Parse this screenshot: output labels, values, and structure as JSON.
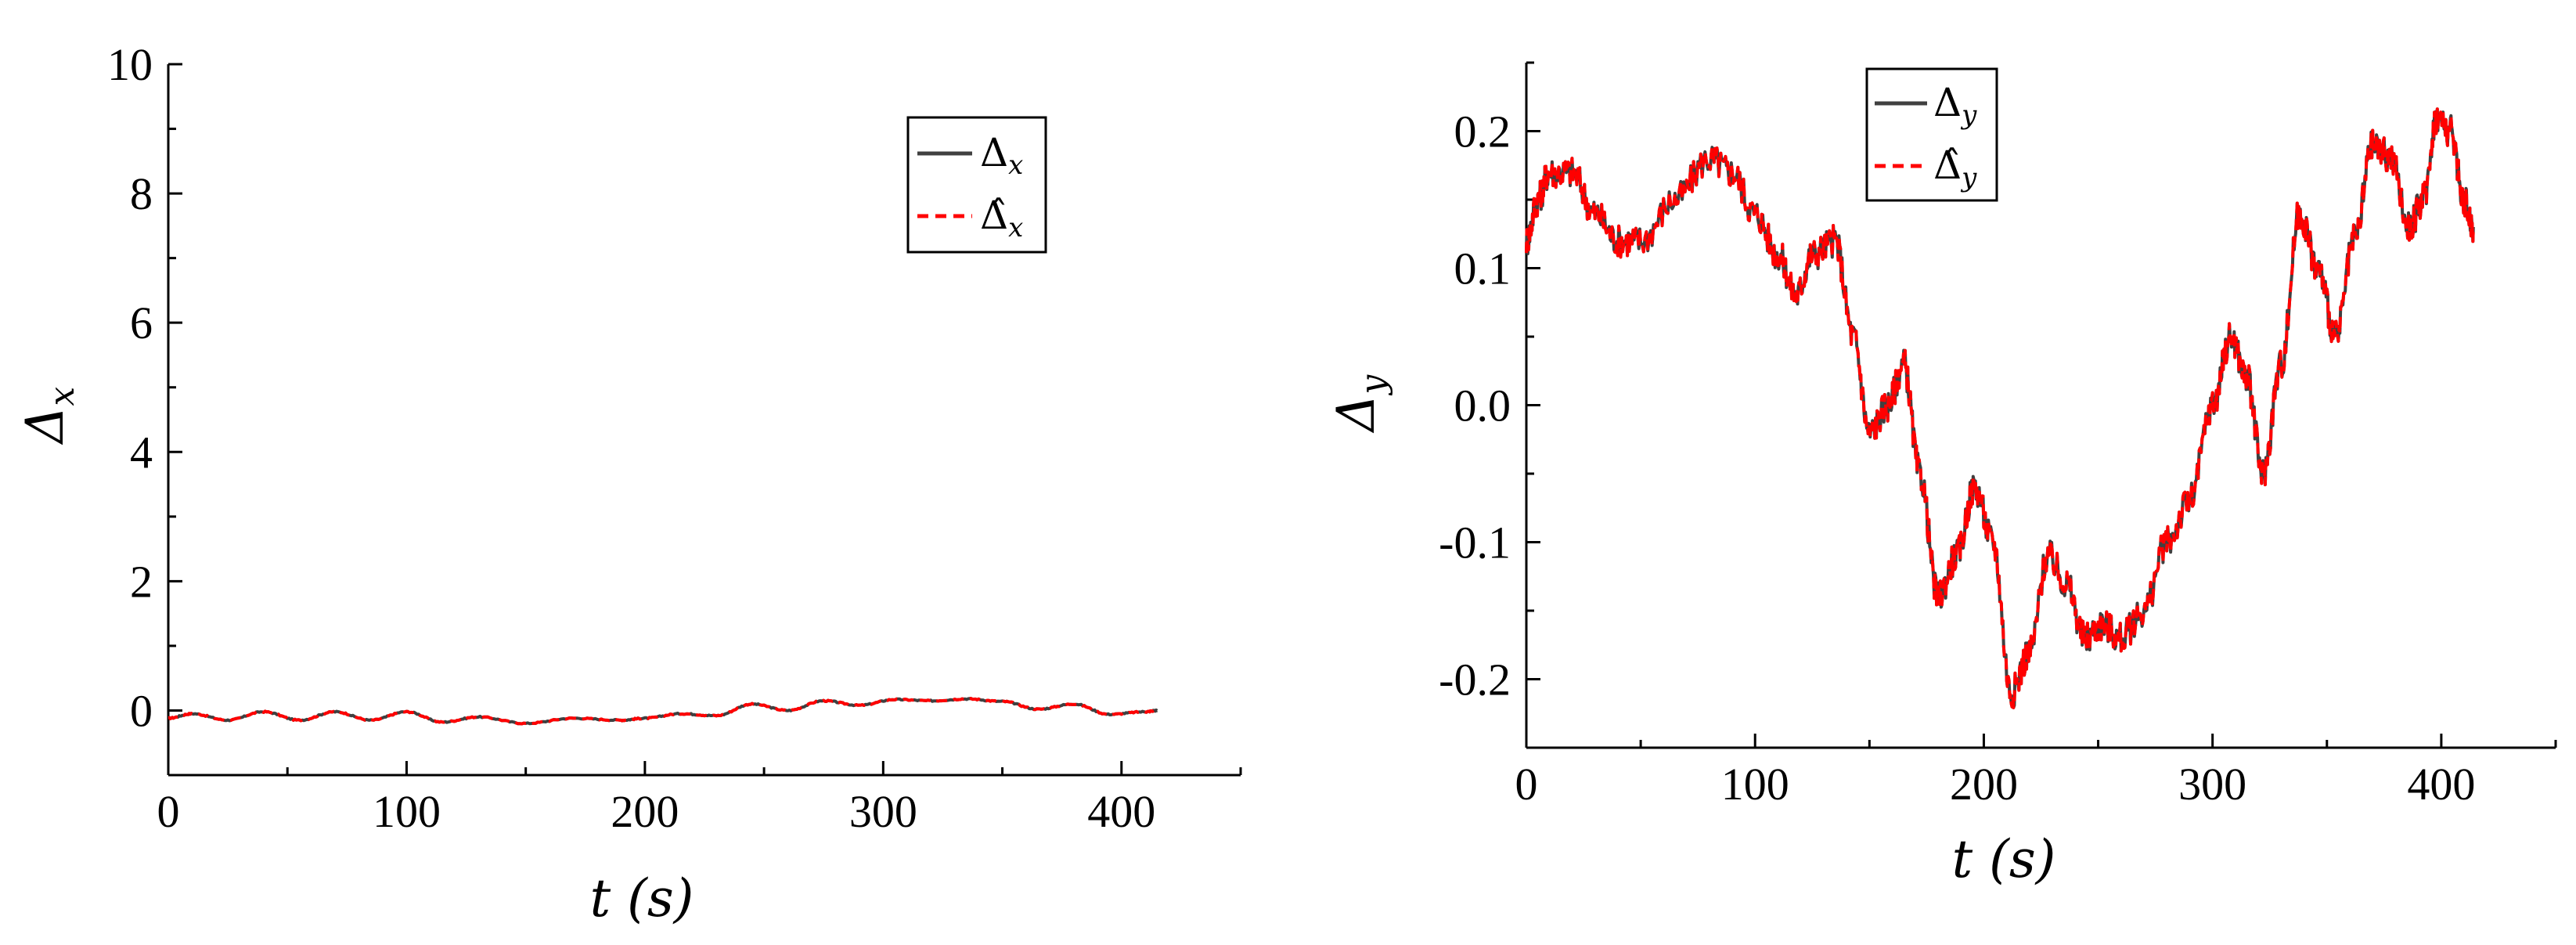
{
  "chart_data": [
    {
      "type": "line",
      "xlabel": "t (s)",
      "ylabel": "Δx",
      "xlim": [
        0,
        450
      ],
      "ylim": [
        -1,
        10
      ],
      "xticks": [
        0,
        100,
        200,
        300,
        400
      ],
      "yticks": [
        0,
        2,
        4,
        6,
        8,
        10
      ],
      "legend_position": "top-right",
      "series": [
        {
          "name": "Δx",
          "color": "#404040",
          "style": "solid",
          "x": [
            0,
            10,
            25,
            40,
            55,
            70,
            85,
            100,
            115,
            130,
            150,
            170,
            190,
            200,
            215,
            230,
            245,
            260,
            275,
            290,
            305,
            320,
            335,
            350,
            365,
            380,
            395,
            410,
            415
          ],
          "y": [
            -0.12,
            -0.05,
            -0.15,
            -0.02,
            -0.15,
            -0.02,
            -0.15,
            -0.02,
            -0.18,
            -0.1,
            -0.2,
            -0.12,
            -0.15,
            -0.12,
            -0.05,
            -0.08,
            0.1,
            0.0,
            0.15,
            0.08,
            0.17,
            0.15,
            0.18,
            0.14,
            0.02,
            0.1,
            -0.06,
            -0.02,
            0.0
          ]
        },
        {
          "name": "Δ̂x",
          "color": "#ff0000",
          "style": "dashed",
          "x": [
            0,
            10,
            25,
            40,
            55,
            70,
            85,
            100,
            115,
            130,
            150,
            170,
            190,
            200,
            215,
            230,
            245,
            260,
            275,
            290,
            305,
            320,
            335,
            350,
            365,
            380,
            395,
            410,
            415
          ],
          "y": [
            -0.12,
            -0.05,
            -0.15,
            -0.02,
            -0.15,
            -0.02,
            -0.15,
            -0.02,
            -0.18,
            -0.1,
            -0.2,
            -0.12,
            -0.15,
            -0.12,
            -0.05,
            -0.08,
            0.1,
            0.0,
            0.15,
            0.08,
            0.17,
            0.15,
            0.18,
            0.14,
            0.02,
            0.1,
            -0.06,
            -0.02,
            0.0
          ]
        }
      ]
    },
    {
      "type": "line",
      "xlabel": "t (s)",
      "ylabel": "Δy",
      "xlim": [
        0,
        450
      ],
      "ylim": [
        -0.25,
        0.25
      ],
      "xticks": [
        0,
        100,
        200,
        300,
        400
      ],
      "yticks": [
        -0.2,
        -0.1,
        0.0,
        0.1,
        0.2
      ],
      "ytick_labels": [
        "-0.2",
        "-0.1",
        "0.0",
        "0.1",
        "0.2"
      ],
      "legend_position": "top-center",
      "series": [
        {
          "name": "Δy",
          "color": "#404040",
          "style": "solid",
          "x": [
            0,
            5,
            10,
            20,
            30,
            40,
            50,
            65,
            80,
            90,
            100,
            110,
            118,
            125,
            135,
            143,
            150,
            158,
            165,
            172,
            180,
            188,
            196,
            204,
            212,
            220,
            228,
            236,
            244,
            252,
            260,
            270,
            280,
            290,
            300,
            308,
            315,
            322,
            330,
            338,
            346,
            354,
            362,
            370,
            378,
            386,
            392,
            398,
            404,
            410,
            414
          ],
          "y": [
            0.12,
            0.15,
            0.17,
            0.17,
            0.14,
            0.12,
            0.12,
            0.15,
            0.18,
            0.17,
            0.14,
            0.11,
            0.08,
            0.11,
            0.12,
            0.05,
            -0.02,
            0.0,
            0.03,
            -0.05,
            -0.14,
            -0.11,
            -0.06,
            -0.1,
            -0.21,
            -0.18,
            -0.11,
            -0.13,
            -0.17,
            -0.16,
            -0.17,
            -0.15,
            -0.1,
            -0.07,
            0.0,
            0.05,
            0.02,
            -0.05,
            0.03,
            0.14,
            0.1,
            0.05,
            0.12,
            0.19,
            0.18,
            0.13,
            0.15,
            0.21,
            0.2,
            0.15,
            0.13
          ]
        },
        {
          "name": "Δ̂y",
          "color": "#ff0000",
          "style": "dashed",
          "x": [
            0,
            5,
            10,
            20,
            30,
            40,
            50,
            65,
            80,
            90,
            100,
            110,
            118,
            125,
            135,
            143,
            150,
            158,
            165,
            172,
            180,
            188,
            196,
            204,
            212,
            220,
            228,
            236,
            244,
            252,
            260,
            270,
            280,
            290,
            300,
            308,
            315,
            322,
            330,
            338,
            346,
            354,
            362,
            370,
            378,
            386,
            392,
            398,
            404,
            410,
            414
          ],
          "y": [
            0.12,
            0.15,
            0.17,
            0.17,
            0.14,
            0.12,
            0.12,
            0.15,
            0.18,
            0.17,
            0.14,
            0.11,
            0.08,
            0.11,
            0.12,
            0.05,
            -0.02,
            0.0,
            0.03,
            -0.05,
            -0.14,
            -0.11,
            -0.06,
            -0.1,
            -0.21,
            -0.18,
            -0.11,
            -0.13,
            -0.17,
            -0.16,
            -0.17,
            -0.15,
            -0.1,
            -0.07,
            0.0,
            0.05,
            0.02,
            -0.05,
            0.03,
            0.14,
            0.1,
            0.05,
            0.12,
            0.19,
            0.18,
            0.13,
            0.15,
            0.21,
            0.2,
            0.15,
            0.13
          ]
        }
      ]
    }
  ]
}
